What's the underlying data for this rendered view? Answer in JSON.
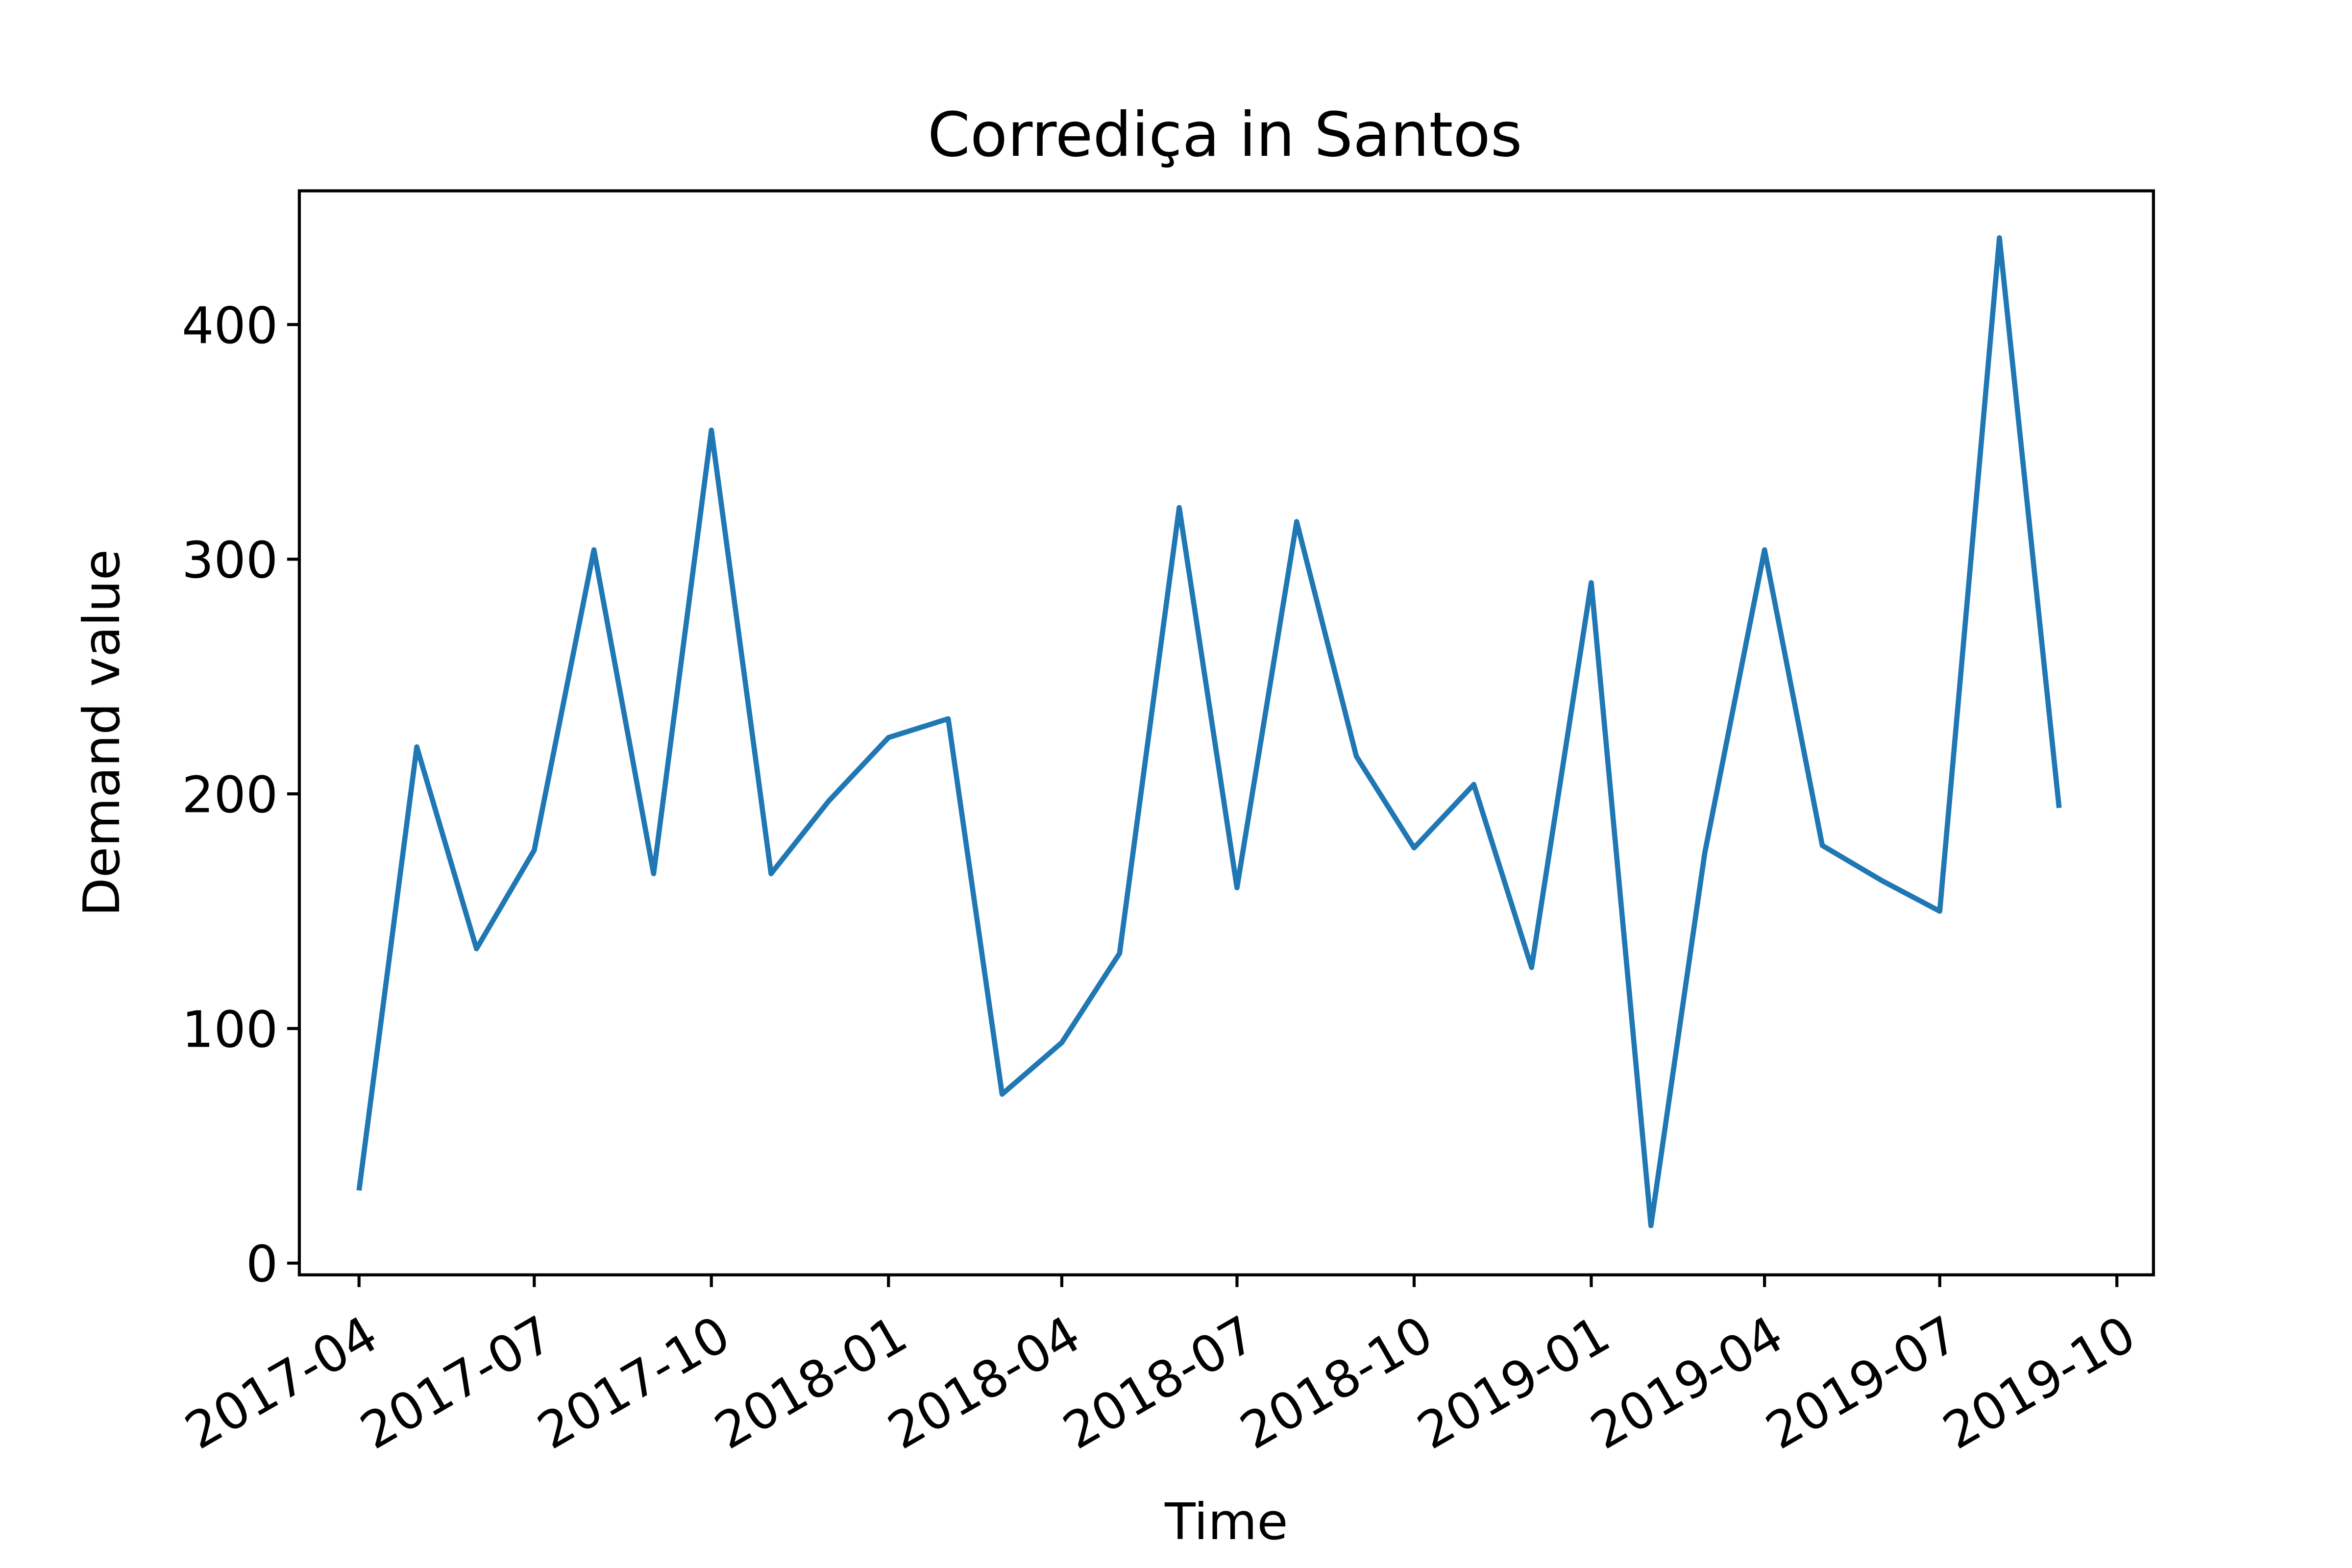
{
  "chart_data": {
    "type": "line",
    "title": "Corrediça in Santos",
    "xlabel": "Time",
    "ylabel": "Demand value",
    "x_ticks": [
      "2017-04",
      "2017-07",
      "2017-10",
      "2018-01",
      "2018-04",
      "2018-07",
      "2018-10",
      "2019-01",
      "2019-04",
      "2019-07",
      "2019-10"
    ],
    "y_ticks": [
      0,
      100,
      200,
      300,
      400
    ],
    "xlim": [
      "2017-03-01",
      "2019-10-20"
    ],
    "ylim": [
      -5,
      457
    ],
    "grid": false,
    "color": "#1f77b4",
    "series": [
      {
        "x": [
          "2017-04-01",
          "2017-05-01",
          "2017-06-01",
          "2017-07-01",
          "2017-08-01",
          "2017-09-01",
          "2017-10-01",
          "2017-11-01",
          "2017-12-01",
          "2018-01-01",
          "2018-02-01",
          "2018-03-01",
          "2018-04-01",
          "2018-05-01",
          "2018-06-01",
          "2018-07-01",
          "2018-08-01",
          "2018-09-01",
          "2018-10-01",
          "2018-11-01",
          "2018-12-01",
          "2019-01-01",
          "2019-02-01",
          "2019-03-01",
          "2019-04-01",
          "2019-05-01",
          "2019-06-01",
          "2019-07-01",
          "2019-08-01",
          "2019-09-01"
        ],
        "values": [
          31,
          220,
          134,
          176,
          304,
          166,
          355,
          166,
          197,
          224,
          232,
          72,
          94,
          132,
          322,
          160,
          316,
          216,
          177,
          204,
          126,
          290,
          16,
          175,
          304,
          178,
          163,
          150,
          437,
          194
        ]
      }
    ]
  }
}
